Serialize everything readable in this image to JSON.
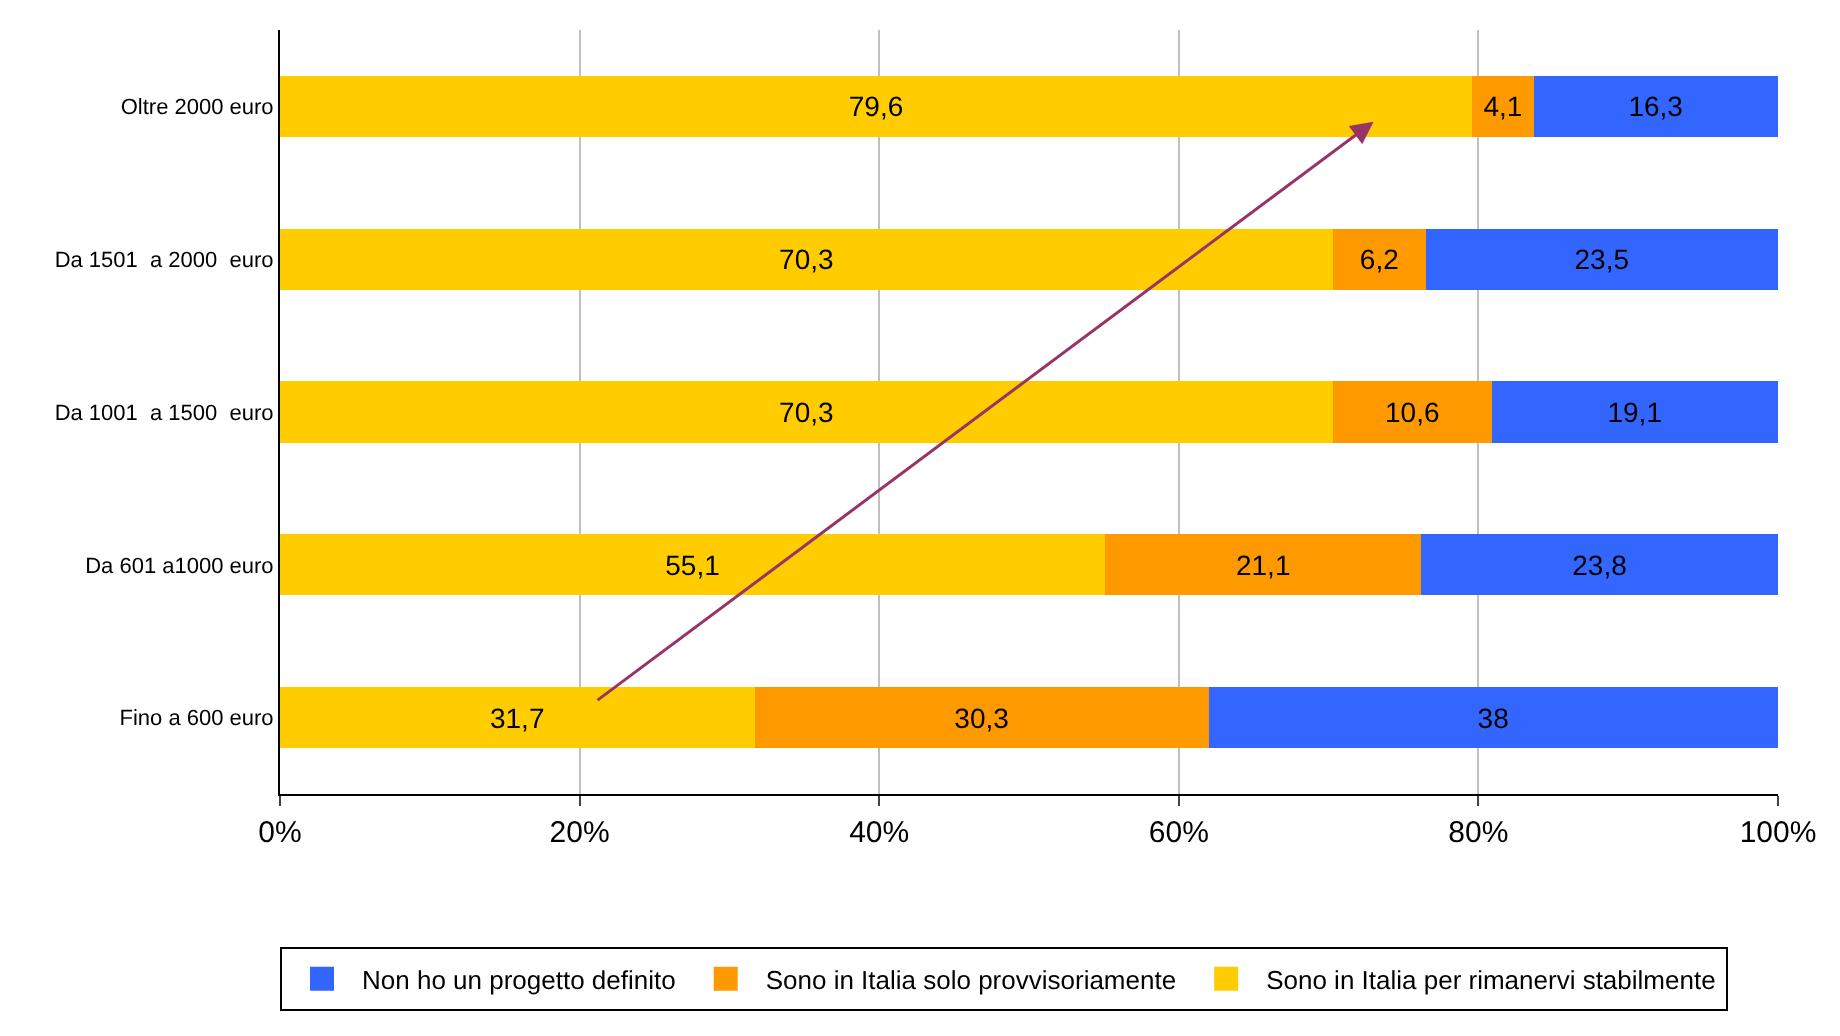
{
  "chart_data": {
    "type": "bar",
    "orientation": "horizontal",
    "stacked": true,
    "categories": [
      "Oltre 2000 euro",
      "Da 1501  a 2000  euro",
      "Da 1001  a 1500  euro",
      "Da 601 a1000 euro",
      "Fino a 600 euro"
    ],
    "series": [
      {
        "name": "Sono in Italia per rimanervi stabilmente",
        "color": "#ffcc00",
        "values": [
          79.6,
          70.3,
          70.3,
          55.1,
          31.7
        ],
        "value_labels": [
          "79,6",
          "70,3",
          "70,3",
          "55,1",
          "31,7"
        ]
      },
      {
        "name": "Sono in Italia solo provvisoriamente",
        "color": "#ff9900",
        "values": [
          4.1,
          6.2,
          10.6,
          21.1,
          30.3
        ],
        "value_labels": [
          "4,1",
          "6,2",
          "10,6",
          "21,1",
          "30,3"
        ]
      },
      {
        "name": "Non ho un progetto definito",
        "color": "#3366ff",
        "values": [
          16.3,
          23.5,
          19.1,
          23.8,
          38
        ],
        "value_labels": [
          "16,3",
          "23,5",
          "19,1",
          "23,8",
          "38"
        ]
      }
    ],
    "xlim": [
      0,
      100
    ],
    "xticks": [
      {
        "value": 0,
        "label": "0%"
      },
      {
        "value": 20,
        "label": "20%"
      },
      {
        "value": 40,
        "label": "40%"
      },
      {
        "value": 60,
        "label": "60%"
      },
      {
        "value": 80,
        "label": "80%"
      },
      {
        "value": 100,
        "label": "100%"
      }
    ],
    "grid": "x",
    "legend": "bottom"
  }
}
